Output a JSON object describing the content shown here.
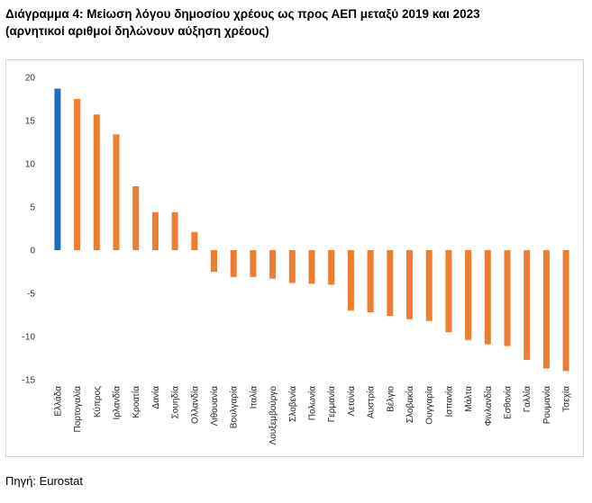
{
  "header": {
    "title_line1": "Διάγραμμα 4: Μείωση λόγου δημοσίου χρέους ως προς ΑΕΠ μεταξύ 2019 και 2023",
    "title_line2": "(αρνητικοί αριθμοί δηλώνουν αύξηση χρέους)"
  },
  "footer": {
    "source": "Πηγή: Eurostat"
  },
  "chart_data": {
    "type": "bar",
    "title": "Διάγραμμα 4: Μείωση λόγου δημοσίου χρέους ως προς ΑΕΠ μεταξύ 2019 και 2023 (αρνητικοί αριθμοί δηλώνουν αύξηση χρέους)",
    "xlabel": "",
    "ylabel": "",
    "ylim": [
      -15,
      20
    ],
    "yticks": [
      20,
      15,
      10,
      5,
      0,
      -5,
      -10,
      -15
    ],
    "grid": false,
    "legend": "none",
    "categories": [
      "Ελλάδα",
      "Πορτογαλία",
      "Κύπρος",
      "Ιρλανδία",
      "Κροατία",
      "Δανία",
      "Σουηδία",
      "Ολλανδία",
      "Λιθουανία",
      "Βουλγαρία",
      "Ιταλία",
      "Λουξεμβούργο",
      "Σλοβενία",
      "Πολωνία",
      "Γερμανία",
      "Λετονία",
      "Αυστρία",
      "Βέλγιο",
      "Σλοβακία",
      "Ουγγαρία",
      "Ισπανία",
      "Μάλτα",
      "Φινλανδία",
      "Εσθονία",
      "Γαλλία",
      "Ρουμανία",
      "Τσεχία"
    ],
    "values": [
      18.7,
      17.5,
      15.7,
      13.4,
      7.4,
      4.4,
      4.4,
      2.1,
      -2.5,
      -3.1,
      -3.1,
      -3.3,
      -3.8,
      -3.9,
      -4.0,
      -7.0,
      -7.2,
      -7.6,
      -8.0,
      -8.2,
      -9.5,
      -10.4,
      -10.9,
      -11.1,
      -12.7,
      -13.7,
      -14.0
    ],
    "colors": {
      "highlight": "#1f6eb5",
      "default": "#ed7d31"
    },
    "highlight_index": 0
  }
}
